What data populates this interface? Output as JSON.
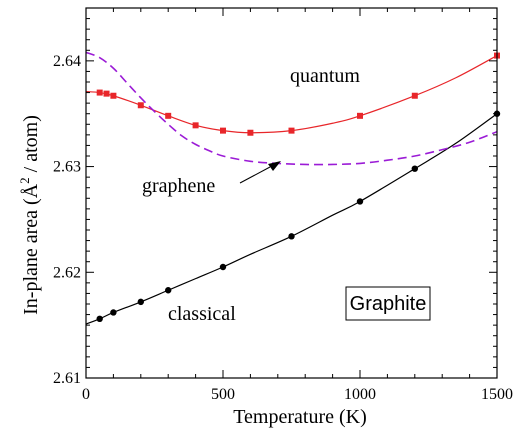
{
  "chart_data": {
    "type": "line",
    "xlabel": "Temperature  (K)",
    "ylabel_main": "In-plane  area  (",
    "ylabel_unit_letter": "Å",
    "ylabel_sup": "2",
    "ylabel_tail": " / atom)",
    "xlim": [
      0,
      1500
    ],
    "ylim": [
      2.61,
      2.645
    ],
    "xticks": [
      0,
      500,
      1000,
      1500
    ],
    "xtick_labels": [
      "0",
      "500",
      "1000",
      "1500"
    ],
    "yticks": [
      2.61,
      2.62,
      2.63,
      2.64
    ],
    "ytick_labels": [
      "2.61",
      "2.62",
      "2.63",
      "2.64"
    ],
    "grid": false,
    "series": [
      {
        "name": "quantum",
        "color": "#e8262a",
        "style": "solid",
        "marker": "square",
        "x": [
          50,
          75,
          100,
          200,
          300,
          400,
          500,
          600,
          750,
          1000,
          1200,
          1500
        ],
        "y": [
          2.637,
          2.6369,
          2.6367,
          2.6358,
          2.6348,
          2.6339,
          2.6334,
          2.6332,
          2.6334,
          2.6348,
          2.6367,
          2.6405
        ],
        "curve": {
          "x": [
            0,
            50,
            100,
            200,
            300,
            400,
            500,
            600,
            750,
            900,
            1000,
            1200,
            1350,
            1500
          ],
          "y": [
            2.6371,
            2.637,
            2.6367,
            2.6358,
            2.6348,
            2.6339,
            2.6334,
            2.6332,
            2.6334,
            2.6341,
            2.6348,
            2.6367,
            2.6384,
            2.6405
          ]
        }
      },
      {
        "name": "classical",
        "color": "#000000",
        "style": "solid",
        "marker": "circle",
        "x": [
          50,
          100,
          200,
          300,
          500,
          750,
          1000,
          1200,
          1500
        ],
        "y": [
          2.6156,
          2.6162,
          2.6172,
          2.6183,
          2.6205,
          2.6234,
          2.6267,
          2.6298,
          2.635
        ],
        "curve": {
          "x": [
            0,
            50,
            100,
            200,
            300,
            400,
            500,
            600,
            750,
            900,
            1000,
            1200,
            1350,
            1500
          ],
          "y": [
            2.6151,
            2.6156,
            2.6162,
            2.6172,
            2.6183,
            2.6194,
            2.6205,
            2.6217,
            2.6234,
            2.6254,
            2.6267,
            2.6298,
            2.6322,
            2.635
          ]
        }
      },
      {
        "name": "graphene",
        "color": "#9b1bd6",
        "style": "dashed",
        "marker": "none",
        "curve": {
          "x": [
            0,
            50,
            100,
            150,
            200,
            250,
            300,
            350,
            400,
            450,
            500,
            600,
            700,
            800,
            900,
            1000,
            1100,
            1200,
            1300,
            1400,
            1500
          ],
          "y": [
            2.6408,
            2.6403,
            2.6393,
            2.6379,
            2.6365,
            2.6352,
            2.634,
            2.6329,
            2.6321,
            2.6315,
            2.631,
            2.6305,
            2.6303,
            2.6302,
            2.6302,
            2.6303,
            2.6306,
            2.631,
            2.6316,
            2.6323,
            2.6333
          ]
        }
      }
    ],
    "annotations": {
      "quantum": "quantum",
      "graphene": "graphene",
      "classical": "classical",
      "box_label": "Graphite"
    }
  }
}
